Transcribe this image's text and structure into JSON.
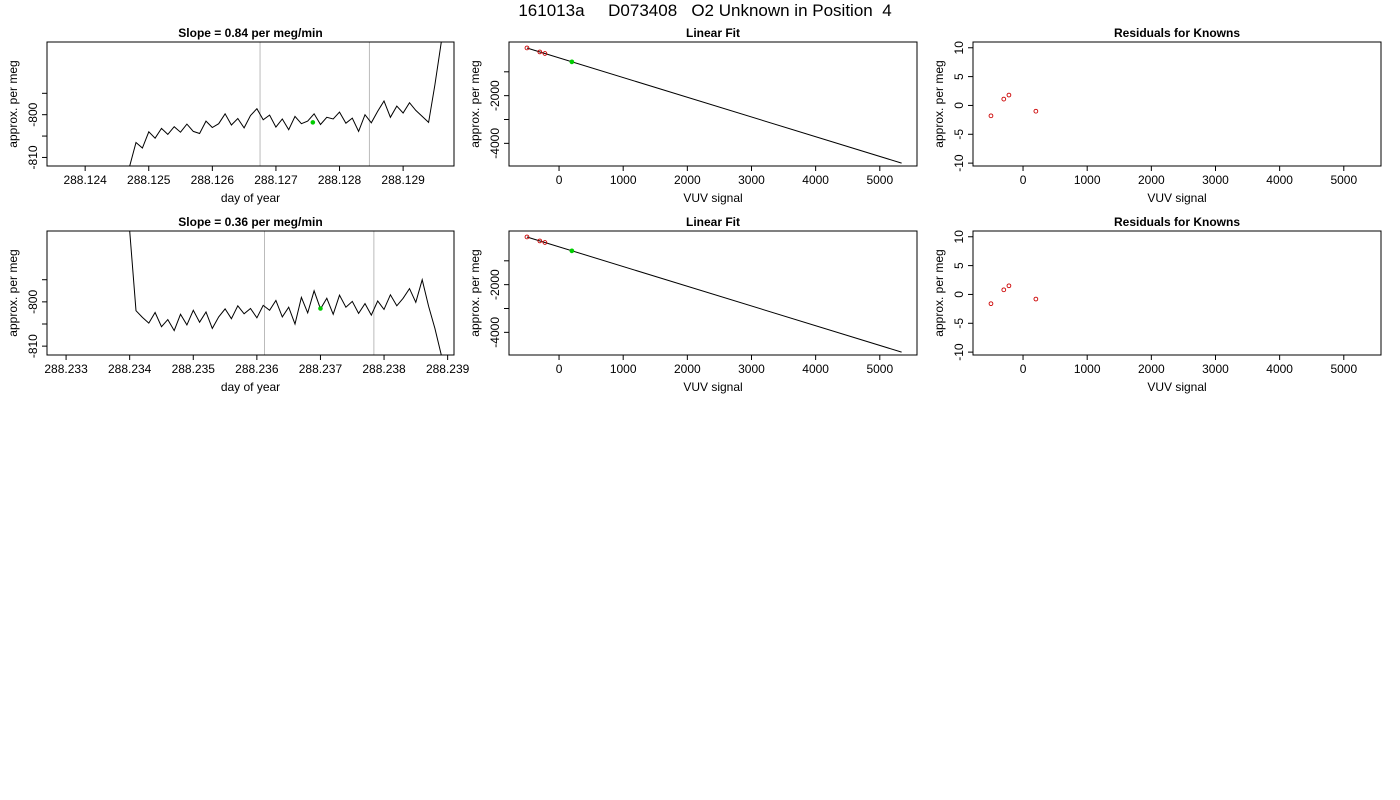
{
  "figure": {
    "suptitle": "161013a     D073408   O2 Unknown in Position  4"
  },
  "chart_data": [
    {
      "type": "line",
      "title": "Slope =  0.84  per meg/min",
      "xlabel": "day of year",
      "ylabel": "approx. per meg",
      "xlim": [
        288.1234,
        288.1298
      ],
      "ylim": [
        -812,
        -783
      ],
      "xticks": [
        {
          "value": 288.124,
          "label": "288.124"
        },
        {
          "value": 288.125,
          "label": "288.125"
        },
        {
          "value": 288.126,
          "label": "288.126"
        },
        {
          "value": 288.127,
          "label": "288.127"
        },
        {
          "value": 288.128,
          "label": "288.128"
        },
        {
          "value": 288.129,
          "label": "288.129"
        }
      ],
      "yticks": [
        {
          "value": -810,
          "label": "-810"
        },
        {
          "value": -805,
          "label": ""
        },
        {
          "value": -800,
          "label": "-800"
        },
        {
          "value": -795,
          "label": ""
        }
      ],
      "vlines": [
        288.12675,
        288.12847
      ],
      "highlight_point": {
        "x": 288.12758,
        "y": -801.8,
        "color": "#00cc00"
      },
      "line_color": "#000000",
      "x": [
        288.1247,
        288.1248,
        288.1249,
        288.125,
        288.1251,
        288.1252,
        288.1253,
        288.1254,
        288.1255,
        288.1256,
        288.1257,
        288.1258,
        288.1259,
        288.126,
        288.1261,
        288.1262,
        288.1263,
        288.1264,
        288.1265,
        288.1266,
        288.1267,
        288.1268,
        288.1269,
        288.127,
        288.1271,
        288.1272,
        288.1273,
        288.1274,
        288.1275,
        288.1276,
        288.1277,
        288.1278,
        288.1279,
        288.128,
        288.1281,
        288.1282,
        288.1283,
        288.1284,
        288.1285,
        288.1286,
        288.1287,
        288.1288,
        288.1289,
        288.129,
        288.1291,
        288.1292,
        288.1293,
        288.1294,
        288.1295,
        288.1296
      ],
      "y": [
        -812.0,
        -806.5,
        -807.8,
        -804.0,
        -805.5,
        -803.2,
        -804.6,
        -802.8,
        -804.1,
        -802.2,
        -803.9,
        -804.4,
        -801.5,
        -803.0,
        -802.1,
        -799.8,
        -802.4,
        -800.9,
        -803.1,
        -800.2,
        -798.6,
        -801.2,
        -800.1,
        -802.9,
        -801.0,
        -803.5,
        -800.4,
        -802.1,
        -801.5,
        -799.8,
        -802.3,
        -800.6,
        -801.0,
        -799.4,
        -802.0,
        -800.8,
        -803.9,
        -800.0,
        -801.9,
        -799.2,
        -796.8,
        -800.6,
        -798.0,
        -799.6,
        -797.2,
        -799.0,
        -800.4,
        -801.8,
        -793.0,
        -783.0
      ]
    },
    {
      "type": "scatter",
      "title": "Linear Fit",
      "xlabel": "VUV signal",
      "ylabel": "approx. per meg",
      "xlim": [
        -780,
        5580
      ],
      "ylim": [
        -4950,
        250
      ],
      "xticks": [
        {
          "value": 0,
          "label": "0"
        },
        {
          "value": 1000,
          "label": "1000"
        },
        {
          "value": 2000,
          "label": "2000"
        },
        {
          "value": 3000,
          "label": "3000"
        },
        {
          "value": 4000,
          "label": "4000"
        },
        {
          "value": 5000,
          "label": "5000"
        }
      ],
      "yticks": [
        {
          "value": -4000,
          "label": "-4000"
        },
        {
          "value": -3000,
          "label": ""
        },
        {
          "value": -2000,
          "label": "-2000"
        },
        {
          "value": -1000,
          "label": ""
        }
      ],
      "fit_line": {
        "x": [
          -500,
          5340
        ],
        "y": [
          0,
          -4830
        ]
      },
      "series": [
        {
          "marker": "open-circle",
          "color": "#cc0000",
          "x": [
            -500,
            -300,
            -220
          ],
          "y": [
            0,
            -166,
            -232
          ]
        },
        {
          "marker": "filled-circle",
          "color": "#00cc00",
          "x": [
            200
          ],
          "y": [
            -582
          ]
        }
      ]
    },
    {
      "type": "scatter",
      "title": "Residuals for Knowns",
      "xlabel": "VUV signal",
      "ylabel": "approx. per meg",
      "xlim": [
        -780,
        5580
      ],
      "ylim": [
        -10.5,
        11
      ],
      "xticks": [
        {
          "value": 0,
          "label": "0"
        },
        {
          "value": 1000,
          "label": "1000"
        },
        {
          "value": 2000,
          "label": "2000"
        },
        {
          "value": 3000,
          "label": "3000"
        },
        {
          "value": 4000,
          "label": "4000"
        },
        {
          "value": 5000,
          "label": "5000"
        }
      ],
      "yticks": [
        {
          "value": -10,
          "label": "-10"
        },
        {
          "value": -5,
          "label": "-5"
        },
        {
          "value": 0,
          "label": "0"
        },
        {
          "value": 5,
          "label": "5"
        },
        {
          "value": 10,
          "label": "10"
        }
      ],
      "series": [
        {
          "marker": "open-circle",
          "color": "#cc0000",
          "x": [
            -500,
            -300,
            -220,
            200
          ],
          "y": [
            -1.8,
            1.1,
            1.8,
            -1.0
          ]
        }
      ]
    },
    {
      "type": "line",
      "title": "Slope =  0.36  per meg/min",
      "xlabel": "day of year",
      "ylabel": "approx. per meg",
      "xlim": [
        288.2327,
        288.2391
      ],
      "ylim": [
        -812,
        -784
      ],
      "xticks": [
        {
          "value": 288.233,
          "label": "288.233"
        },
        {
          "value": 288.234,
          "label": "288.234"
        },
        {
          "value": 288.235,
          "label": "288.235"
        },
        {
          "value": 288.236,
          "label": "288.236"
        },
        {
          "value": 288.237,
          "label": "288.237"
        },
        {
          "value": 288.238,
          "label": "288.238"
        },
        {
          "value": 288.239,
          "label": "288.239"
        }
      ],
      "yticks": [
        {
          "value": -810,
          "label": "-810"
        },
        {
          "value": -805,
          "label": ""
        },
        {
          "value": -800,
          "label": "-800"
        },
        {
          "value": -795,
          "label": ""
        }
      ],
      "vlines": [
        288.23612,
        288.23784
      ],
      "highlight_point": {
        "x": 288.237,
        "y": -801.5,
        "color": "#00cc00"
      },
      "line_color": "#000000",
      "x": [
        288.234,
        288.2341,
        288.2342,
        288.2343,
        288.2344,
        288.2345,
        288.2346,
        288.2347,
        288.2348,
        288.2349,
        288.235,
        288.2351,
        288.2352,
        288.2353,
        288.2354,
        288.2355,
        288.2356,
        288.2357,
        288.2358,
        288.2359,
        288.236,
        288.2361,
        288.2362,
        288.2363,
        288.2364,
        288.2365,
        288.2366,
        288.2367,
        288.2368,
        288.2369,
        288.237,
        288.2371,
        288.2372,
        288.2373,
        288.2374,
        288.2375,
        288.2376,
        288.2377,
        288.2378,
        288.2379,
        288.238,
        288.2381,
        288.2382,
        288.2383,
        288.2384,
        288.2385,
        288.2386,
        288.2387,
        288.2388,
        288.2389
      ],
      "y": [
        -784.0,
        -802.0,
        -803.5,
        -804.8,
        -802.4,
        -805.6,
        -804.0,
        -806.5,
        -802.8,
        -805.2,
        -801.9,
        -804.6,
        -802.3,
        -806.0,
        -803.4,
        -801.6,
        -803.8,
        -800.9,
        -802.7,
        -801.5,
        -803.6,
        -800.8,
        -801.9,
        -799.7,
        -803.4,
        -801.2,
        -805.0,
        -799.0,
        -802.5,
        -797.5,
        -801.6,
        -799.2,
        -802.8,
        -798.5,
        -801.2,
        -799.9,
        -802.6,
        -800.4,
        -803.0,
        -799.8,
        -801.7,
        -798.4,
        -800.9,
        -799.2,
        -797.0,
        -800.1,
        -795.0,
        -801.0,
        -806.0,
        -812.0
      ]
    },
    {
      "type": "scatter",
      "title": "Linear Fit",
      "xlabel": "VUV signal",
      "ylabel": "approx. per meg",
      "xlim": [
        -780,
        5580
      ],
      "ylim": [
        -4950,
        250
      ],
      "xticks": [
        {
          "value": 0,
          "label": "0"
        },
        {
          "value": 1000,
          "label": "1000"
        },
        {
          "value": 2000,
          "label": "2000"
        },
        {
          "value": 3000,
          "label": "3000"
        },
        {
          "value": 4000,
          "label": "4000"
        },
        {
          "value": 5000,
          "label": "5000"
        }
      ],
      "yticks": [
        {
          "value": -4000,
          "label": "-4000"
        },
        {
          "value": -3000,
          "label": ""
        },
        {
          "value": -2000,
          "label": "-2000"
        },
        {
          "value": -1000,
          "label": ""
        }
      ],
      "fit_line": {
        "x": [
          -500,
          5340
        ],
        "y": [
          0,
          -4830
        ]
      },
      "series": [
        {
          "marker": "open-circle",
          "color": "#cc0000",
          "x": [
            -500,
            -300,
            -220
          ],
          "y": [
            0,
            -166,
            -232
          ]
        },
        {
          "marker": "filled-circle",
          "color": "#00cc00",
          "x": [
            200
          ],
          "y": [
            -582
          ]
        }
      ]
    },
    {
      "type": "scatter",
      "title": "Residuals for Knowns",
      "xlabel": "VUV signal",
      "ylabel": "approx. per meg",
      "xlim": [
        -780,
        5580
      ],
      "ylim": [
        -10.5,
        11
      ],
      "xticks": [
        {
          "value": 0,
          "label": "0"
        },
        {
          "value": 1000,
          "label": "1000"
        },
        {
          "value": 2000,
          "label": "2000"
        },
        {
          "value": 3000,
          "label": "3000"
        },
        {
          "value": 4000,
          "label": "4000"
        },
        {
          "value": 5000,
          "label": "5000"
        }
      ],
      "yticks": [
        {
          "value": -10,
          "label": "-10"
        },
        {
          "value": -5,
          "label": "-5"
        },
        {
          "value": 0,
          "label": "0"
        },
        {
          "value": 5,
          "label": "5"
        },
        {
          "value": 10,
          "label": "10"
        }
      ],
      "series": [
        {
          "marker": "open-circle",
          "color": "#cc0000",
          "x": [
            -500,
            -300,
            -220,
            200
          ],
          "y": [
            -1.6,
            0.8,
            1.5,
            -0.8
          ]
        }
      ]
    }
  ]
}
